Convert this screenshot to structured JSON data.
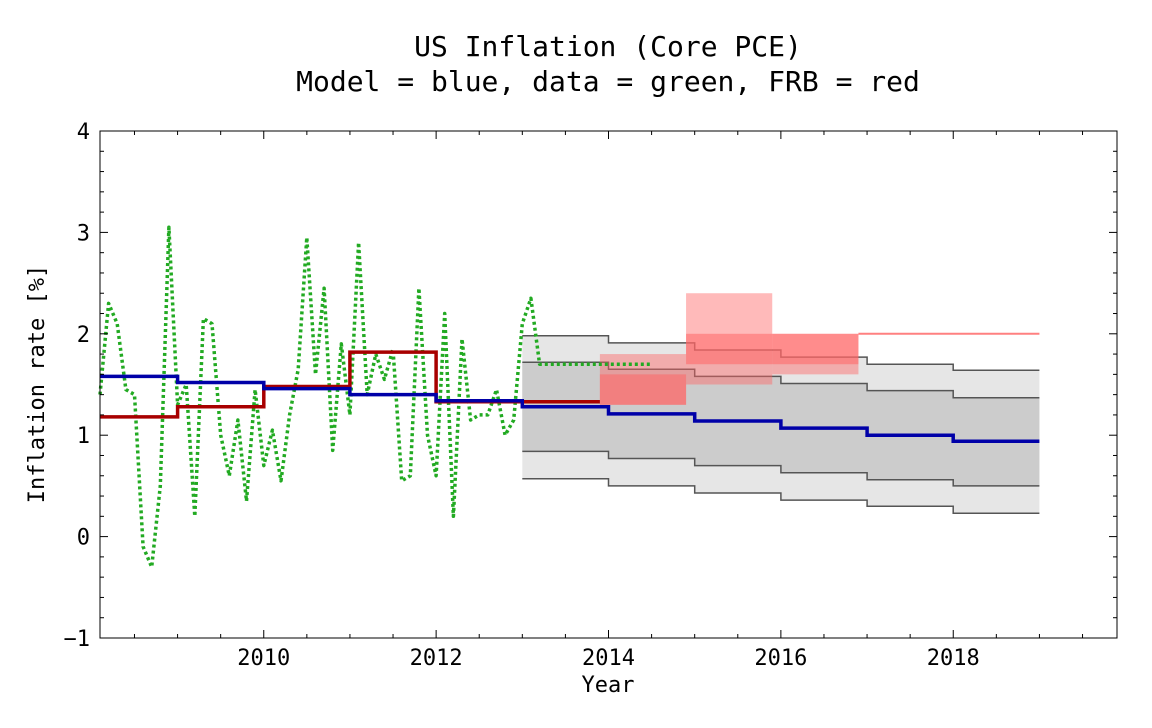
{
  "chart_data": {
    "type": "line",
    "title": "US Inflation (Core PCE)",
    "subtitle": "Model = blue, data = green, FRB = red",
    "xlabel": "Year",
    "ylabel": "Inflation rate [%]",
    "xlim": [
      2008.1,
      2019.9
    ],
    "ylim": [
      -1,
      4
    ],
    "xticks": [
      2010,
      2012,
      2014,
      2016,
      2018
    ],
    "yticks": [
      -1,
      0,
      1,
      2,
      3,
      4
    ],
    "ytick_labels": [
      "−1",
      "0",
      "1",
      "2",
      "3",
      "4"
    ],
    "grid": false,
    "colors": {
      "model": "#0000a8",
      "data": "#22aa22",
      "frb": "#a80000",
      "band_outer": "#e6e6e6",
      "band_inner": "#cccccc",
      "band_edge": "#555555",
      "frb_range": "#ff6666",
      "frb_line": "#ff8080"
    },
    "series": [
      {
        "name": "Model",
        "style": "step",
        "x": [
          2008.1,
          2009.0,
          2010.0,
          2011.0,
          2012.0,
          2013.0,
          2014.0,
          2015.0,
          2016.0,
          2017.0,
          2018.0,
          2019.0
        ],
        "y": [
          1.58,
          1.52,
          1.46,
          1.4,
          1.34,
          1.28,
          1.21,
          1.14,
          1.07,
          1.0,
          0.94,
          0.94
        ]
      },
      {
        "name": "data",
        "style": "dotted",
        "x": [
          2008.1,
          2008.2,
          2008.3,
          2008.4,
          2008.5,
          2008.6,
          2008.7,
          2008.8,
          2008.9,
          2009.0,
          2009.1,
          2009.2,
          2009.3,
          2009.4,
          2009.5,
          2009.6,
          2009.7,
          2009.8,
          2009.9,
          2010.0,
          2010.1,
          2010.2,
          2010.3,
          2010.4,
          2010.5,
          2010.6,
          2010.7,
          2010.8,
          2010.9,
          2011.0,
          2011.1,
          2011.2,
          2011.3,
          2011.4,
          2011.5,
          2011.6,
          2011.7,
          2011.8,
          2011.9,
          2012.0,
          2012.1,
          2012.2,
          2012.3,
          2012.4,
          2012.5,
          2012.6,
          2012.7,
          2012.8,
          2012.9,
          2013.0,
          2013.1,
          2013.2,
          2013.3,
          2013.4,
          2013.5,
          2013.6,
          2013.7,
          2013.8,
          2013.9,
          2014.0,
          2014.1,
          2014.2,
          2014.3,
          2014.4,
          2014.5
        ],
        "y": [
          1.4,
          2.3,
          2.1,
          1.45,
          1.4,
          -0.1,
          -0.3,
          0.5,
          3.05,
          1.3,
          1.5,
          0.2,
          2.15,
          2.1,
          1.0,
          0.6,
          1.15,
          0.35,
          1.45,
          0.7,
          1.05,
          0.55,
          1.2,
          1.65,
          2.95,
          1.6,
          2.45,
          0.85,
          1.9,
          1.2,
          2.9,
          1.4,
          1.8,
          1.55,
          1.85,
          0.55,
          0.6,
          2.45,
          1.0,
          0.6,
          2.2,
          0.2,
          1.95,
          1.15,
          1.2,
          1.2,
          1.45,
          1.0,
          1.15,
          2.1,
          2.35,
          1.7,
          1.7,
          1.7,
          1.7,
          1.7,
          1.7,
          1.7,
          1.7,
          1.7,
          1.7,
          1.7,
          1.7,
          1.7,
          1.7
        ]
      },
      {
        "name": "FRB",
        "style": "step",
        "x": [
          2008.1,
          2009.0,
          2010.0,
          2011.0,
          2012.0,
          2012.0,
          2013.9
        ],
        "y": [
          1.18,
          1.28,
          1.48,
          1.82,
          1.82,
          1.33,
          1.33
        ]
      }
    ],
    "model_bands": {
      "x": [
        2013.0,
        2014.0,
        2015.0,
        2016.0,
        2017.0,
        2018.0,
        2019.0
      ],
      "outer_upper": [
        1.98,
        1.91,
        1.84,
        1.77,
        1.7,
        1.64,
        1.64
      ],
      "inner_upper": [
        1.72,
        1.65,
        1.58,
        1.51,
        1.44,
        1.37,
        1.37
      ],
      "inner_lower": [
        0.84,
        0.77,
        0.7,
        0.63,
        0.56,
        0.5,
        0.5
      ],
      "outer_lower": [
        0.57,
        0.5,
        0.43,
        0.36,
        0.3,
        0.23,
        0.23
      ]
    },
    "frb_projection": [
      {
        "x0": 2013.9,
        "x1": 2014.9,
        "central_low": 1.3,
        "central_high": 1.6,
        "range_low": 1.3,
        "range_high": 1.8
      },
      {
        "x0": 2014.9,
        "x1": 2015.9,
        "central_low": 1.7,
        "central_high": 2.0,
        "range_low": 1.5,
        "range_high": 2.4
      },
      {
        "x0": 2015.9,
        "x1": 2016.9,
        "central_low": 1.7,
        "central_high": 2.0,
        "range_low": 1.6,
        "range_high": 2.0
      }
    ],
    "frb_longrun": {
      "x0": 2016.9,
      "x1": 2019.0,
      "y": 2.0
    }
  }
}
